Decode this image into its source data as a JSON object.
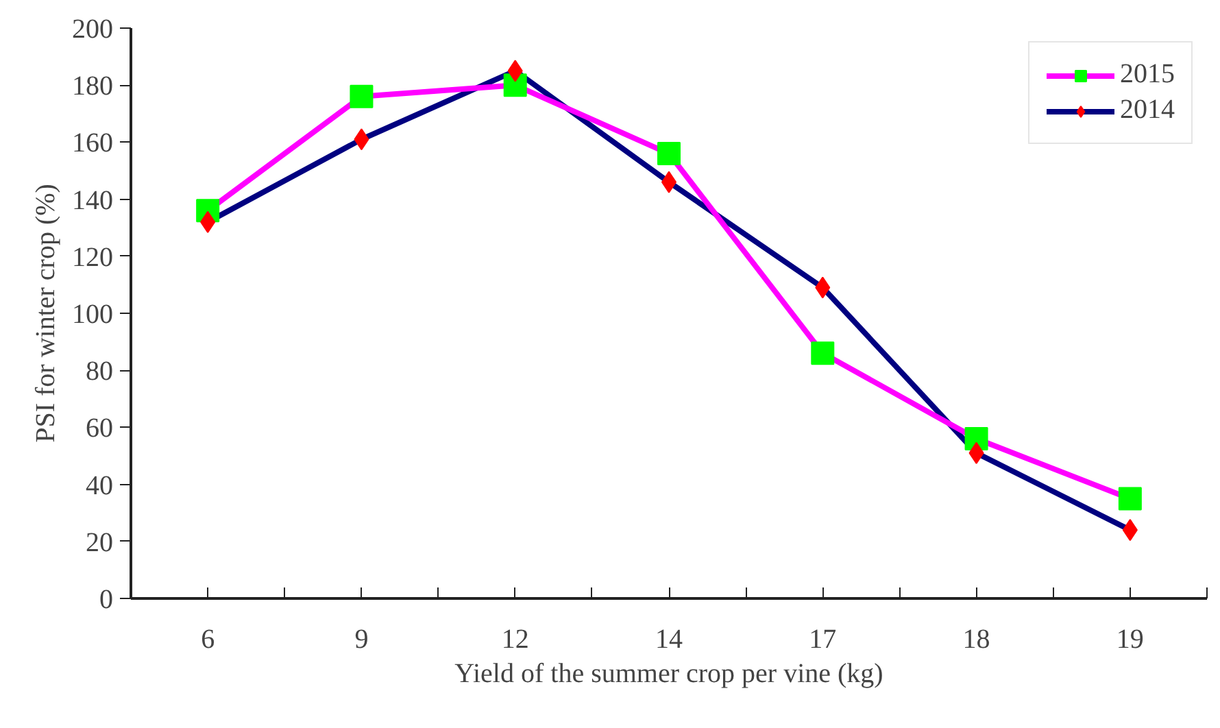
{
  "chart_data": {
    "type": "line",
    "xlabel": "Yield of the summer crop per vine (kg)",
    "ylabel": "PSI for winter crop (%)",
    "categories": [
      "6",
      "9",
      "12",
      "14",
      "17",
      "18",
      "19"
    ],
    "ylim": [
      0,
      200
    ],
    "yticks": [
      0,
      20,
      40,
      60,
      80,
      100,
      120,
      140,
      160,
      180,
      200
    ],
    "grid": false,
    "legend": "top right",
    "line_style": "solid",
    "series": [
      {
        "name": "2015",
        "color": "#ff00ff",
        "colors": [
          "#00ff00",
          "#00ff00",
          "#00ff00",
          "#00ff00",
          "#00ff00",
          "#00ff00",
          "#00ff00"
        ],
        "marker": "square",
        "values": [
          136,
          176,
          180,
          156,
          86,
          56,
          35
        ]
      },
      {
        "name": "2014",
        "color": "#000080",
        "colors": [
          "#ff0000",
          "#ff0000",
          "#ff0000",
          "#ff0000",
          "#ff0000",
          "#ff0000",
          "#ff0000"
        ],
        "marker": "diamond",
        "values": [
          132,
          161,
          185,
          146,
          109,
          51,
          24
        ]
      }
    ]
  }
}
